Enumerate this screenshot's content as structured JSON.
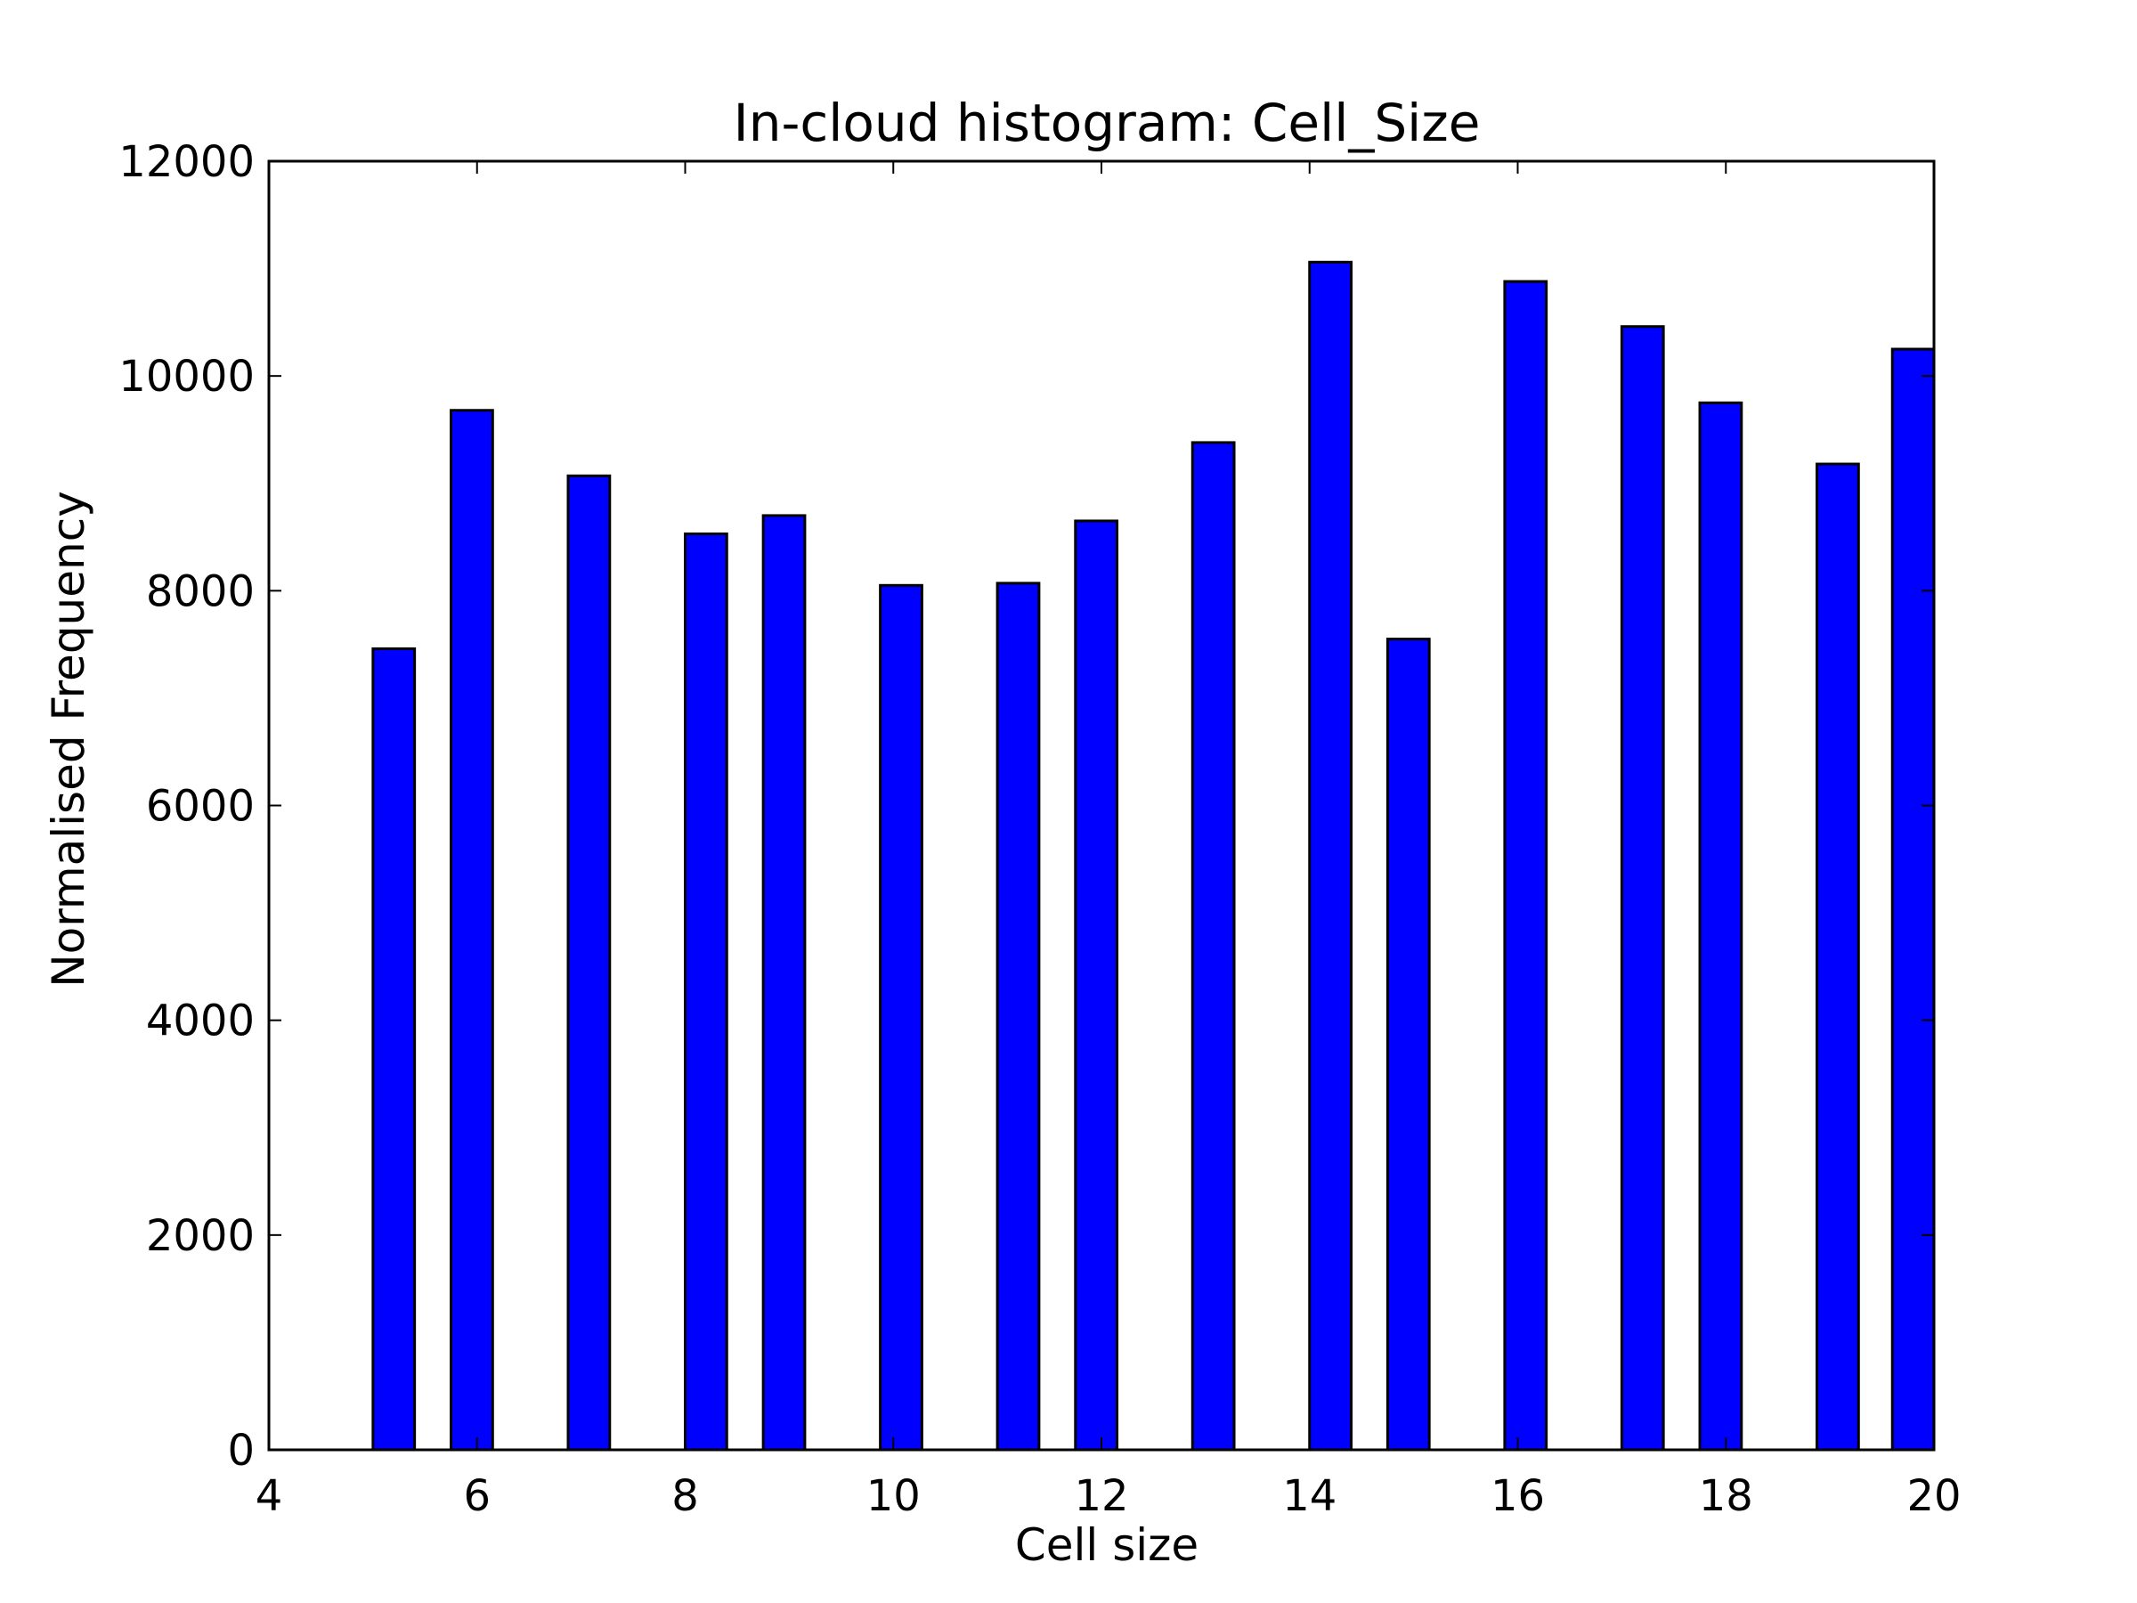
{
  "chart_data": {
    "type": "bar",
    "title": "In-cloud histogram: Cell_Size",
    "xlabel": "Cell size",
    "ylabel": "Normalised Frequency",
    "xlim": [
      4,
      20
    ],
    "ylim": [
      0,
      12000
    ],
    "x_ticks": [
      4,
      6,
      8,
      10,
      12,
      14,
      16,
      18,
      20
    ],
    "y_ticks": [
      0,
      2000,
      4000,
      6000,
      8000,
      10000,
      12000
    ],
    "bar_width": 0.4,
    "grid": false,
    "bar_color": "#0000ff",
    "edge_color": "#000000",
    "bars": [
      {
        "x": 5.0,
        "value": 7460
      },
      {
        "x": 5.75,
        "value": 9680
      },
      {
        "x": 6.875,
        "value": 9070
      },
      {
        "x": 8.0,
        "value": 8530
      },
      {
        "x": 8.75,
        "value": 8700
      },
      {
        "x": 9.875,
        "value": 8050
      },
      {
        "x": 11.0,
        "value": 8070
      },
      {
        "x": 11.75,
        "value": 8650
      },
      {
        "x": 12.875,
        "value": 9380
      },
      {
        "x": 14.0,
        "value": 11060
      },
      {
        "x": 14.75,
        "value": 7550
      },
      {
        "x": 15.875,
        "value": 10880
      },
      {
        "x": 17.0,
        "value": 10460
      },
      {
        "x": 17.75,
        "value": 9750
      },
      {
        "x": 18.875,
        "value": 9180
      },
      {
        "x": 19.6,
        "value": 10250
      }
    ]
  }
}
